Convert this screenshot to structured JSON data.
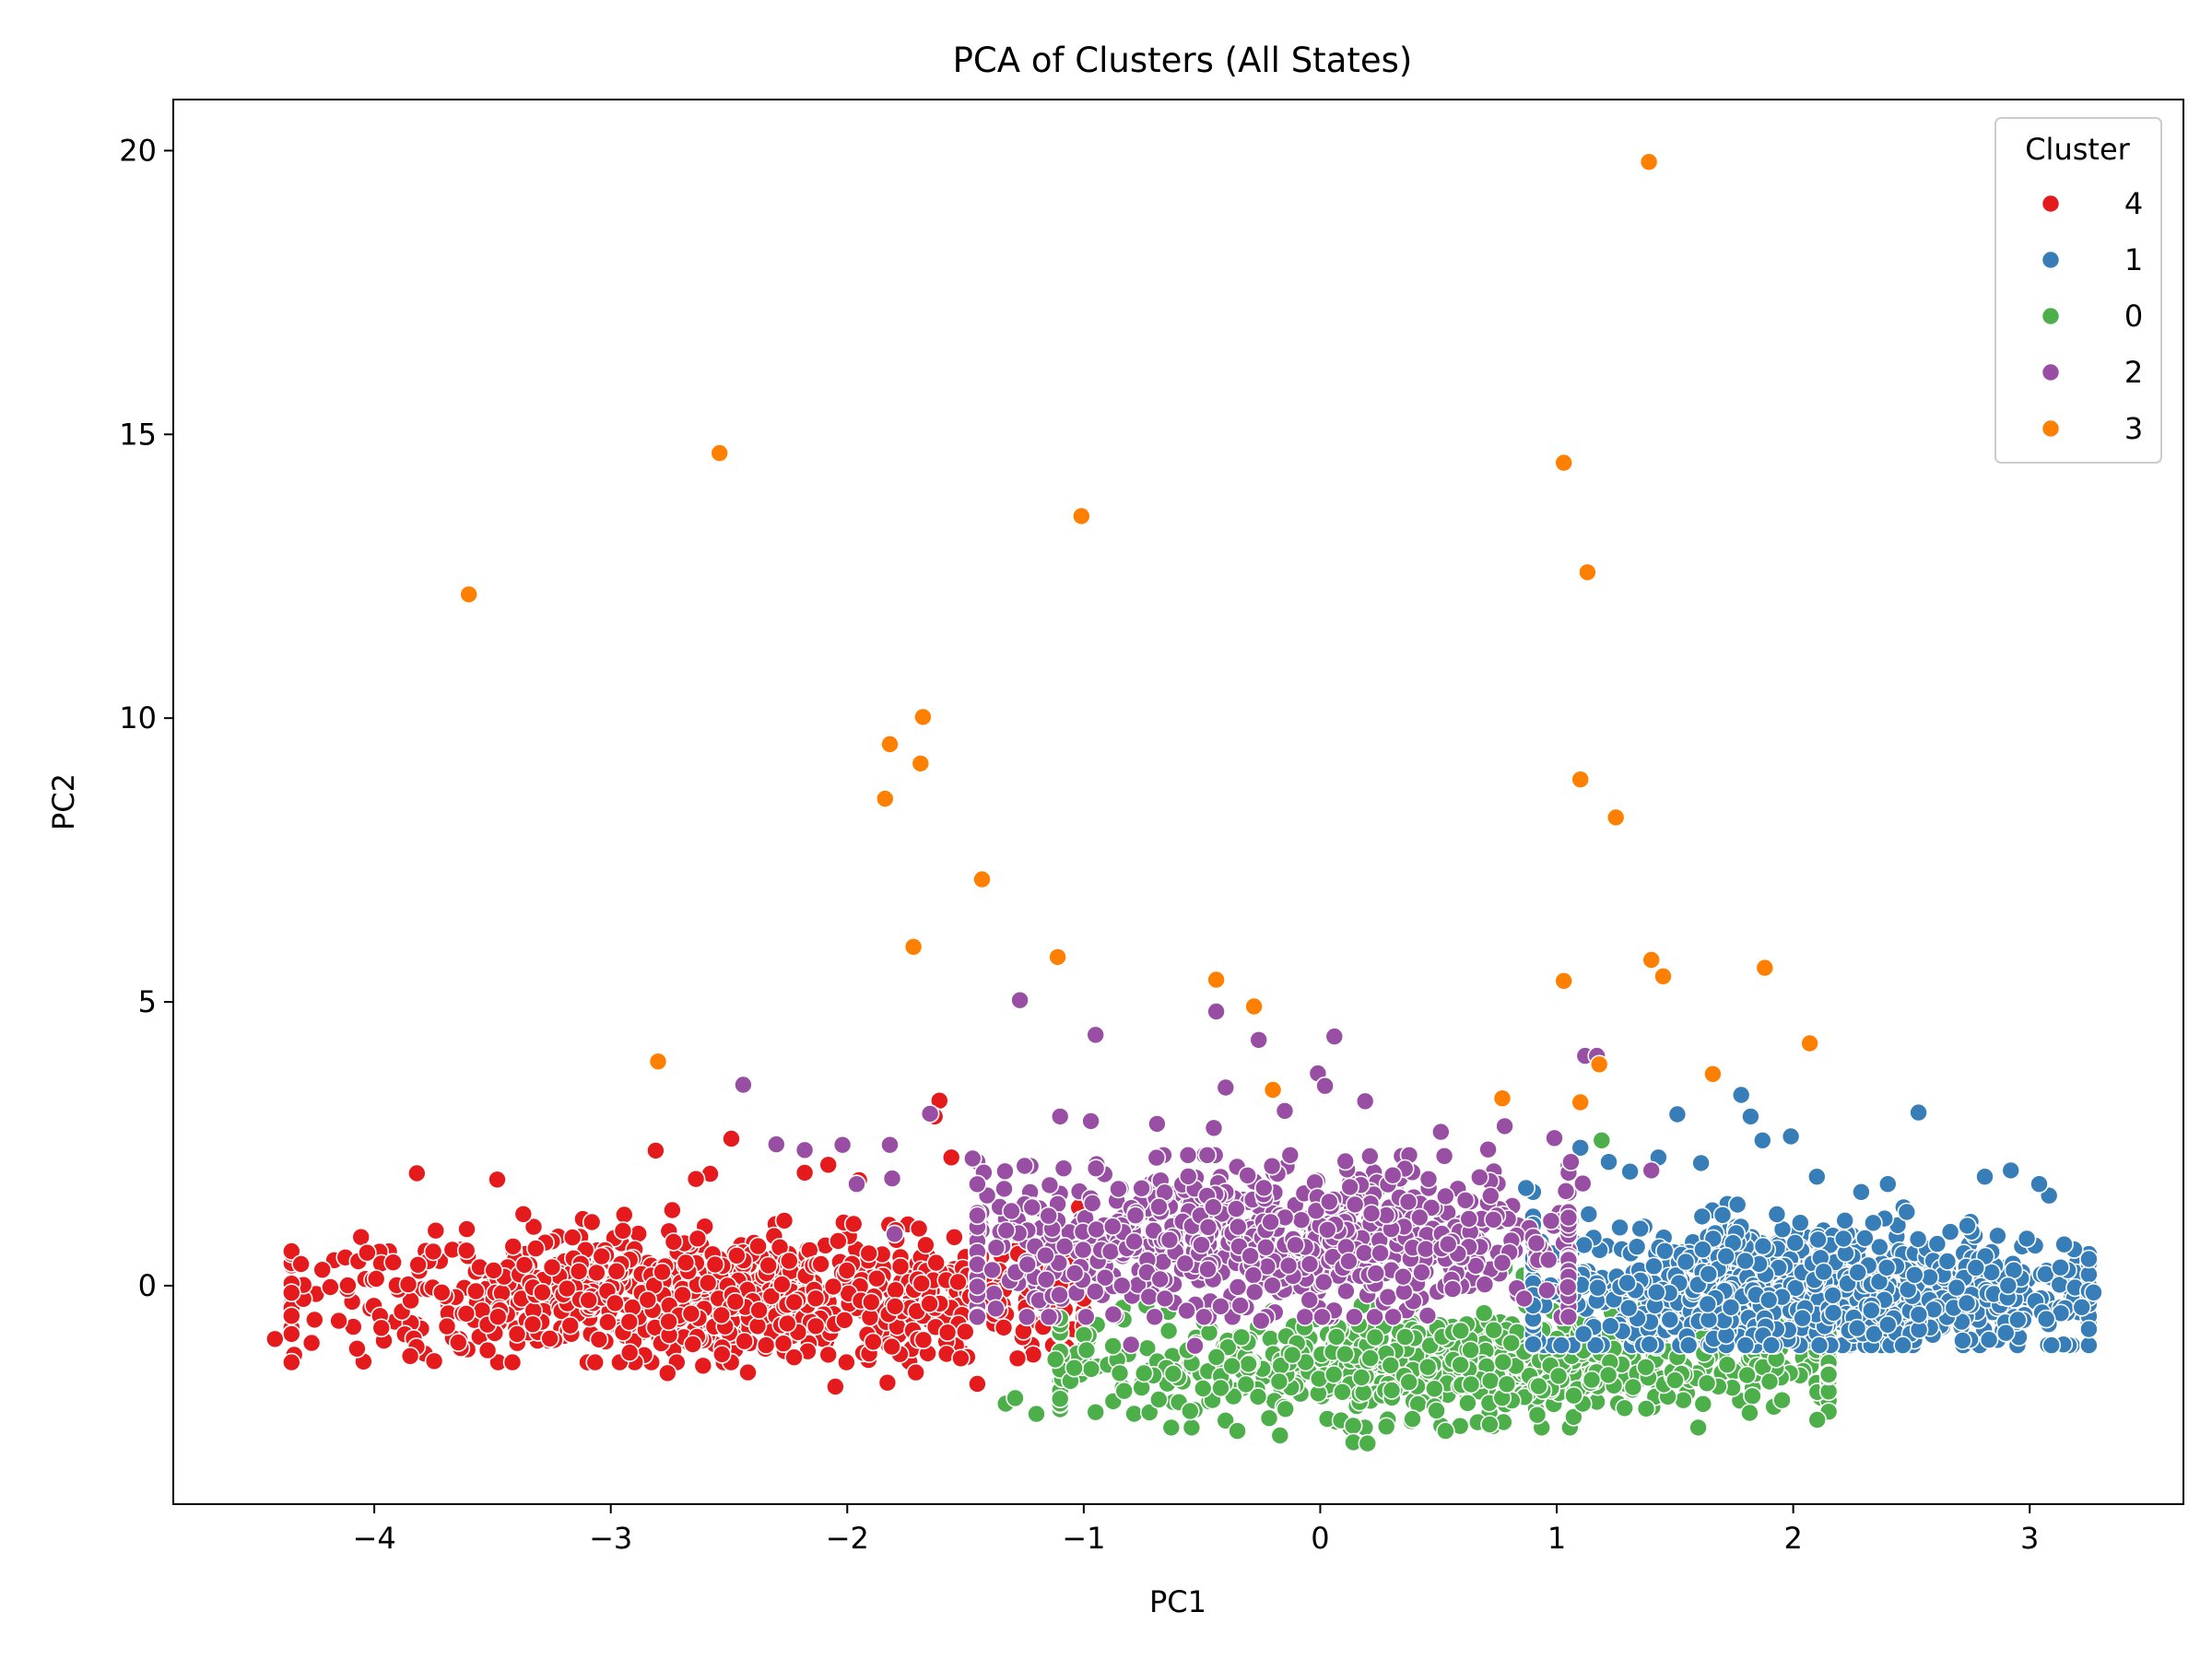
{
  "chart_data": {
    "type": "scatter",
    "title": "PCA of Clusters (All States)",
    "xlabel": "PC1",
    "ylabel": "PC2",
    "xlim": [
      -4.85,
      3.65
    ],
    "ylim": [
      -3.85,
      20.9
    ],
    "xticks": [
      -4,
      -3,
      -2,
      -1,
      0,
      1,
      2,
      3
    ],
    "yticks": [
      0,
      5,
      10,
      15,
      20
    ],
    "grid": false,
    "legend": {
      "title": "Cluster",
      "placement": "top-right"
    },
    "series": [
      {
        "name": "4",
        "color": "#e41a1c",
        "points": [
          [
            -4.42,
            -0.94
          ],
          [
            -3.82,
            1.98
          ],
          [
            -3.48,
            1.87
          ],
          [
            -3.74,
            0.97
          ],
          [
            -2.81,
            2.38
          ],
          [
            -2.49,
            2.59
          ],
          [
            -2.58,
            1.97
          ],
          [
            -2.64,
            1.88
          ],
          [
            -1.61,
            3.26
          ],
          [
            -1.63,
            2.98
          ],
          [
            -1.56,
            2.26
          ],
          [
            -2.08,
            2.13
          ],
          [
            -2.18,
            1.99
          ],
          [
            -1.95,
            1.86
          ],
          [
            -2.76,
            -1.54
          ],
          [
            -2.42,
            -1.53
          ],
          [
            -2.61,
            -1.41
          ],
          [
            -2.05,
            -1.78
          ],
          [
            -1.83,
            -1.71
          ],
          [
            -1.45,
            -1.73
          ],
          [
            -1.28,
            -1.28
          ],
          [
            -3.61,
            0.62
          ],
          [
            -3.37,
            1.26
          ],
          [
            -3.08,
            1.12
          ],
          [
            -2.74,
            1.33
          ],
          [
            -4.31,
            0.38
          ],
          [
            -4.22,
            0.28
          ],
          [
            -4.03,
            0.58
          ],
          [
            -3.92,
            0.41
          ],
          [
            -4.15,
            -0.62
          ],
          [
            -3.33,
            -0.68
          ],
          [
            -3.05,
            -0.95
          ],
          [
            -2.92,
            -1.18
          ],
          [
            -2.53,
            -1.21
          ],
          [
            -2.27,
            -1.02
          ],
          [
            -1.71,
            -1.53
          ],
          [
            -1.52,
            -1.28
          ],
          [
            -1.13,
            -1.05
          ],
          [
            -1.08,
            -0.42
          ],
          [
            -1.1,
            0.02
          ],
          [
            -1.02,
            1.38
          ]
        ],
        "cloud": {
          "center": [
            -2.55,
            -0.2
          ],
          "spread": [
            0.9,
            0.55
          ],
          "range_x": [
            -4.35,
            -1.0
          ],
          "range_y": [
            -1.35,
            1.25
          ],
          "count": 900
        }
      },
      {
        "name": "1",
        "color": "#377eb8",
        "points": [
          [
            2.53,
            3.05
          ],
          [
            1.78,
            3.36
          ],
          [
            1.82,
            2.98
          ],
          [
            1.99,
            2.63
          ],
          [
            1.87,
            2.56
          ],
          [
            1.51,
            3.02
          ],
          [
            1.43,
            2.26
          ],
          [
            1.31,
            2.01
          ],
          [
            1.1,
            2.43
          ],
          [
            2.92,
            2.03
          ],
          [
            3.04,
            1.79
          ],
          [
            2.81,
            1.92
          ],
          [
            3.27,
            -0.12
          ],
          [
            3.22,
            -0.38
          ],
          [
            3.13,
            0.32
          ],
          [
            1.22,
            2.18
          ],
          [
            2.4,
            1.79
          ],
          [
            2.1,
            1.92
          ],
          [
            1.61,
            2.16
          ],
          [
            0.87,
            1.72
          ],
          [
            0.56,
            0.41
          ]
        ],
        "cloud": {
          "center": [
            2.05,
            -0.05
          ],
          "spread": [
            0.65,
            0.6
          ],
          "range_x": [
            0.9,
            3.25
          ],
          "range_y": [
            -1.05,
            1.65
          ],
          "count": 900
        }
      },
      {
        "name": "0",
        "color": "#4daf4a",
        "points": [
          [
            1.19,
            2.56
          ],
          [
            0.32,
            1.77
          ],
          [
            0.25,
            1.73
          ],
          [
            -0.02,
            1.18
          ],
          [
            -0.1,
            0.72
          ],
          [
            0.78,
            0.31
          ],
          [
            0.86,
            0.18
          ],
          [
            1.67,
            -0.32
          ],
          [
            1.9,
            -1.69
          ],
          [
            -1.33,
            -2.08
          ],
          [
            -1.2,
            -2.26
          ],
          [
            -0.95,
            -2.23
          ],
          [
            -0.55,
            -2.21
          ],
          [
            -0.35,
            -2.56
          ],
          [
            -0.17,
            -2.64
          ],
          [
            0.14,
            -2.76
          ],
          [
            0.2,
            -2.78
          ],
          [
            0.53,
            -2.56
          ],
          [
            0.39,
            -2.35
          ],
          [
            -1.29,
            -1.98
          ],
          [
            -1.04,
            -1.45
          ],
          [
            -1.12,
            -1.3
          ]
        ],
        "cloud": {
          "center": [
            0.6,
            -1.4
          ],
          "spread": [
            0.9,
            0.45
          ],
          "range_x": [
            -1.1,
            2.15
          ],
          "range_y": [
            -2.5,
            -0.35
          ],
          "count": 800
        }
      },
      {
        "name": "2",
        "color": "#984ea3",
        "points": [
          [
            -1.27,
            5.03
          ],
          [
            -0.95,
            4.42
          ],
          [
            -0.44,
            4.83
          ],
          [
            -0.26,
            4.33
          ],
          [
            0.06,
            4.39
          ],
          [
            -0.01,
            3.74
          ],
          [
            1.12,
            4.05
          ],
          [
            1.17,
            4.05
          ],
          [
            -0.4,
            3.49
          ],
          [
            -0.15,
            3.08
          ],
          [
            0.02,
            3.52
          ],
          [
            0.19,
            3.25
          ],
          [
            -2.44,
            3.54
          ],
          [
            -1.65,
            3.03
          ],
          [
            -1.1,
            2.98
          ],
          [
            -0.69,
            2.85
          ],
          [
            -2.3,
            2.49
          ],
          [
            -2.02,
            2.48
          ],
          [
            -1.82,
            2.48
          ],
          [
            -2.18,
            2.39
          ],
          [
            -1.25,
            2.11
          ],
          [
            -1.47,
            2.24
          ],
          [
            -1.96,
            1.79
          ],
          [
            -1.81,
            1.89
          ],
          [
            -1.8,
            0.91
          ],
          [
            -0.97,
            2.9
          ],
          [
            -0.45,
            2.78
          ],
          [
            0.21,
            2.28
          ],
          [
            0.51,
            2.71
          ],
          [
            0.78,
            2.81
          ],
          [
            0.71,
            2.4
          ],
          [
            0.99,
            2.6
          ],
          [
            1.06,
            2.18
          ],
          [
            1.11,
            1.8
          ],
          [
            1.4,
            2.03
          ],
          [
            -0.8,
            -1.04
          ],
          [
            -0.53,
            -1.06
          ],
          [
            -0.25,
            -0.62
          ],
          [
            0.56,
            -0.06
          ]
        ],
        "cloud": {
          "center": [
            -0.2,
            0.75
          ],
          "spread": [
            0.7,
            0.65
          ],
          "range_x": [
            -1.45,
            1.05
          ],
          "range_y": [
            -0.55,
            2.3
          ],
          "count": 800
        }
      },
      {
        "name": "3",
        "color": "#ff7f00",
        "points": [
          [
            1.39,
            19.8
          ],
          [
            -2.54,
            14.67
          ],
          [
            1.03,
            14.5
          ],
          [
            -1.01,
            13.56
          ],
          [
            1.13,
            12.57
          ],
          [
            -3.6,
            12.18
          ],
          [
            -1.68,
            10.02
          ],
          [
            -1.82,
            9.54
          ],
          [
            -1.69,
            9.2
          ],
          [
            1.1,
            8.92
          ],
          [
            -1.84,
            8.58
          ],
          [
            1.25,
            8.25
          ],
          [
            -1.43,
            7.16
          ],
          [
            -1.72,
            5.97
          ],
          [
            -1.11,
            5.79
          ],
          [
            1.4,
            5.74
          ],
          [
            1.45,
            5.45
          ],
          [
            1.88,
            5.6
          ],
          [
            1.03,
            5.37
          ],
          [
            -0.44,
            5.39
          ],
          [
            -0.28,
            4.92
          ],
          [
            2.07,
            4.27
          ],
          [
            -2.8,
            3.95
          ],
          [
            1.18,
            3.9
          ],
          [
            1.66,
            3.73
          ],
          [
            -0.2,
            3.45
          ],
          [
            0.77,
            3.3
          ],
          [
            1.1,
            3.23
          ]
        ]
      }
    ]
  }
}
